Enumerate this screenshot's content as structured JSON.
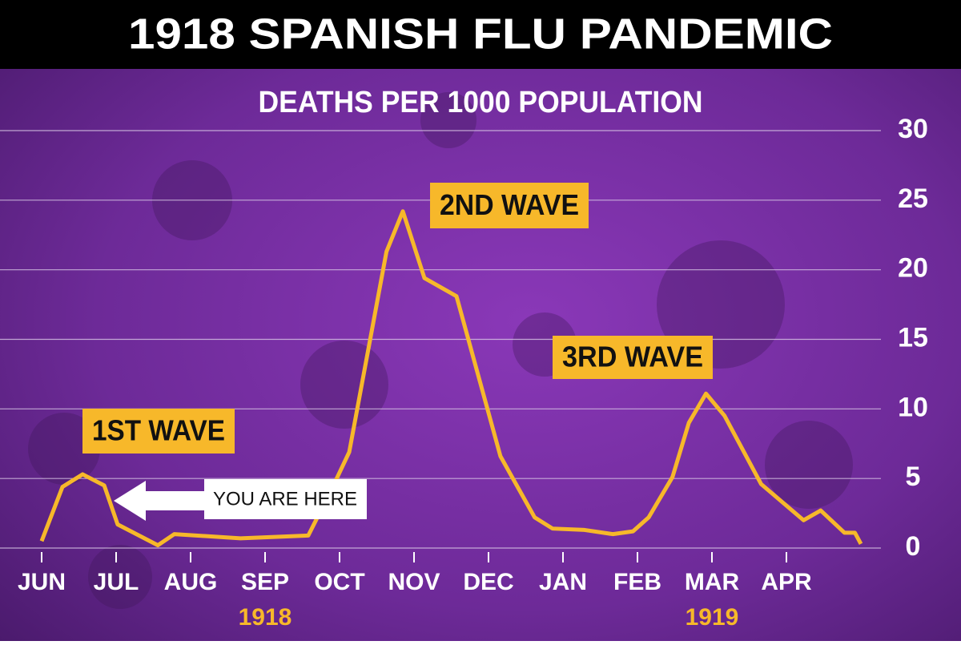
{
  "chart_data": {
    "type": "line",
    "title": "1918 SPANISH FLU PANDEMIC",
    "subtitle": "DEATHS PER 1000 POPULATION",
    "x": [
      0,
      0.28,
      0.55,
      0.84,
      1.02,
      1.56,
      1.78,
      2.67,
      3.58,
      3.9,
      4.13,
      4.63,
      4.85,
      5.14,
      5.57,
      6.16,
      6.62,
      6.86,
      7.29,
      7.67,
      7.94,
      8.15,
      8.47,
      8.69,
      8.92,
      9.17,
      9.66,
      10.23,
      10.46,
      10.78,
      10.92,
      11.0
    ],
    "values": [
      0.5,
      4.4,
      5.3,
      4.5,
      1.7,
      0.2,
      1.0,
      0.7,
      0.9,
      4.3,
      6.9,
      21.3,
      24.2,
      19.4,
      18.1,
      6.6,
      2.2,
      1.4,
      1.3,
      1.0,
      1.2,
      2.2,
      5.1,
      9.0,
      11.1,
      9.5,
      4.6,
      2.0,
      2.7,
      1.1,
      1.1,
      0.3
    ],
    "color": "#f7b82a",
    "xlim": [
      0,
      11
    ],
    "xticks": [
      {
        "value": 0,
        "label": "JUN"
      },
      {
        "value": 1,
        "label": "JUL"
      },
      {
        "value": 2,
        "label": "AUG"
      },
      {
        "value": 3,
        "label": "SEP"
      },
      {
        "value": 4,
        "label": "OCT"
      },
      {
        "value": 5,
        "label": "NOV"
      },
      {
        "value": 6,
        "label": "DEC"
      },
      {
        "value": 7,
        "label": "JAN"
      },
      {
        "value": 8,
        "label": "FEB"
      },
      {
        "value": 9,
        "label": "MAR"
      },
      {
        "value": 10,
        "label": "APR"
      }
    ],
    "years": [
      "1918",
      "1919"
    ],
    "ylim": [
      0,
      30
    ],
    "yticks": [
      0,
      5,
      10,
      15,
      20,
      25,
      30
    ],
    "grid": true,
    "annotations": [
      "1ST WAVE",
      "2ND WAVE",
      "3RD WAVE",
      "YOU ARE HERE"
    ]
  }
}
